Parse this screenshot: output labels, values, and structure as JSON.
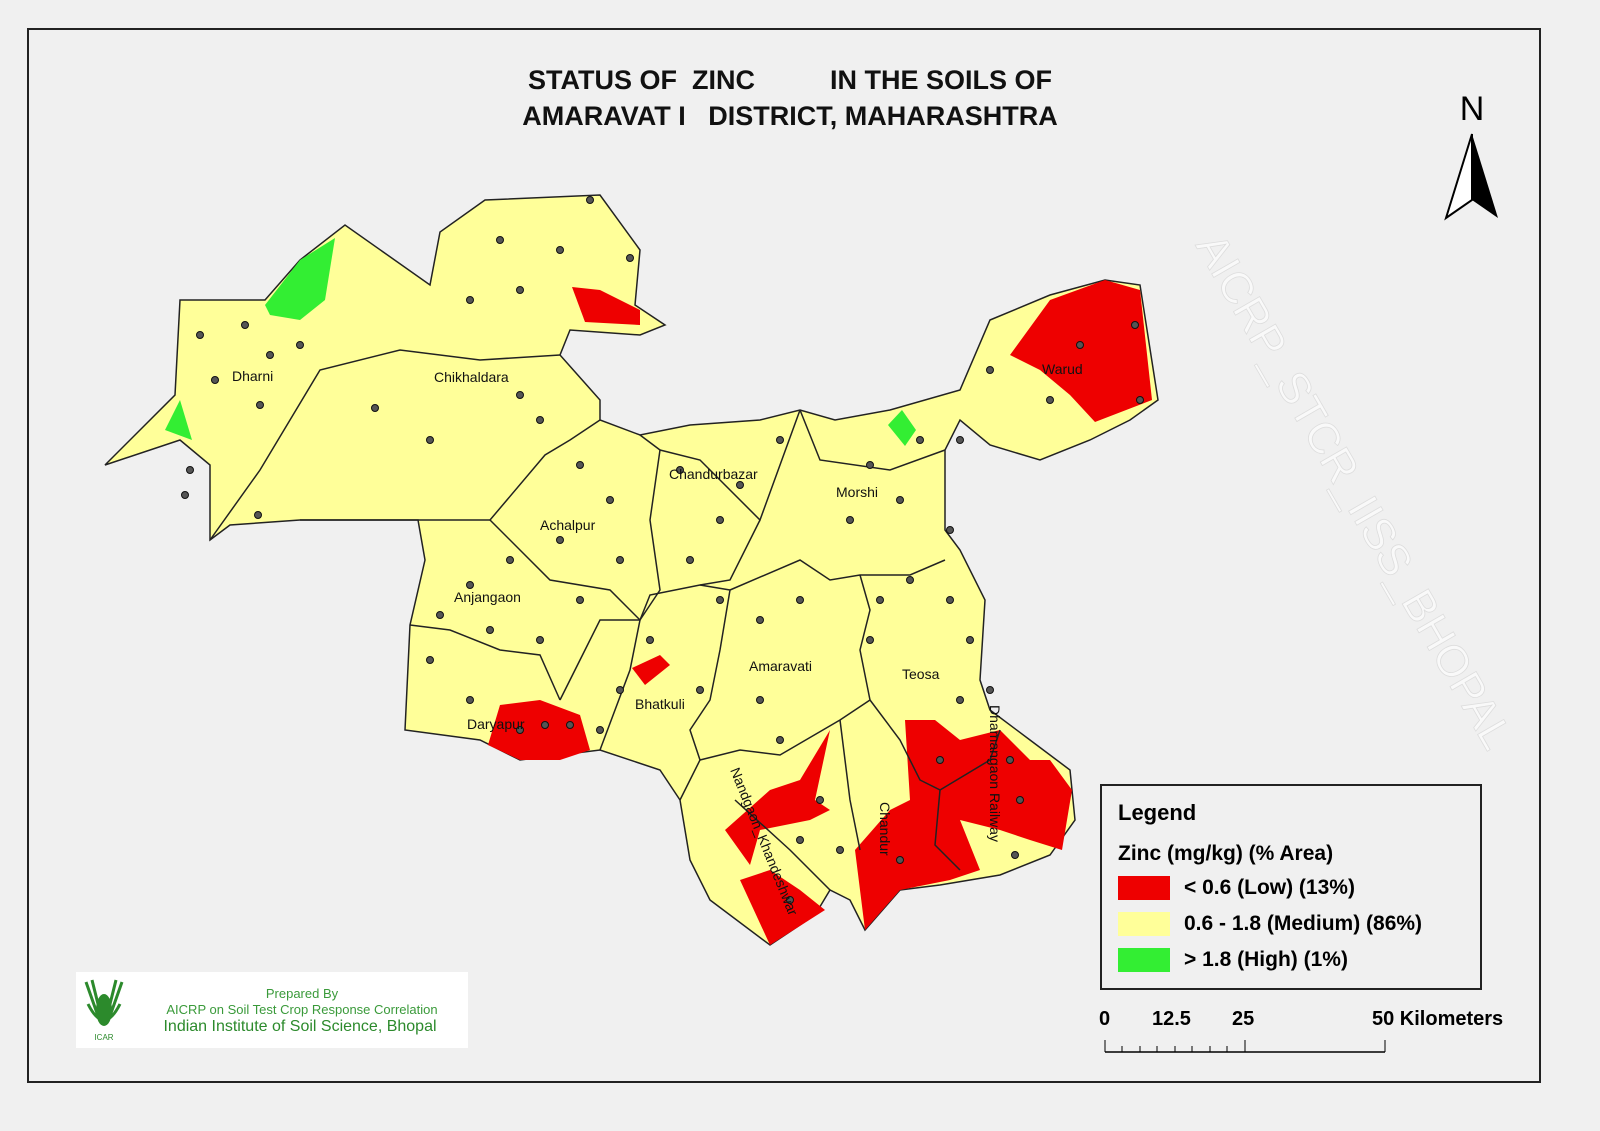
{
  "title": {
    "line1": "STATUS OF  ZINC          IN THE SOILS OF",
    "line2": "AMARAVAT I   DISTRICT, MAHARASHTRA"
  },
  "north_arrow": {
    "label": "N"
  },
  "watermark": "AICRP_STCR_IISS_BHOPAL",
  "tehsils": [
    "Dharni",
    "Chikhaldara",
    "Warud",
    "Chandurbazar",
    "Morshi",
    "Achalpur",
    "Anjangaon",
    "Daryapur",
    "Bhatkuli",
    "Amaravati",
    "Teosa",
    "Nandgaon_Khandeshwar",
    "Chandur",
    "Dhamangaon Railway"
  ],
  "legend": {
    "heading": "Legend",
    "subtitle": "Zinc (mg/kg) (% Area)",
    "classes": [
      {
        "label": "< 0.6 (Low) (13%)",
        "color": "#ee0000",
        "percent_area": 13
      },
      {
        "label": "0.6 - 1.8 (Medium) (86%)",
        "color": "#ffff99",
        "percent_area": 86
      },
      {
        "label": "> 1.8 (High) (1%)",
        "color": "#33ee33",
        "percent_area": 1
      }
    ]
  },
  "scale_bar": {
    "ticks": [
      "0",
      "12.5",
      "25",
      "50 Kilometers"
    ]
  },
  "credits": {
    "line1": "Prepared By",
    "line2": "AICRP on Soil Test Crop Response Correlation",
    "line3": "Indian Institute of Soil Science, Bhopal",
    "logo_text": "ICAR"
  }
}
